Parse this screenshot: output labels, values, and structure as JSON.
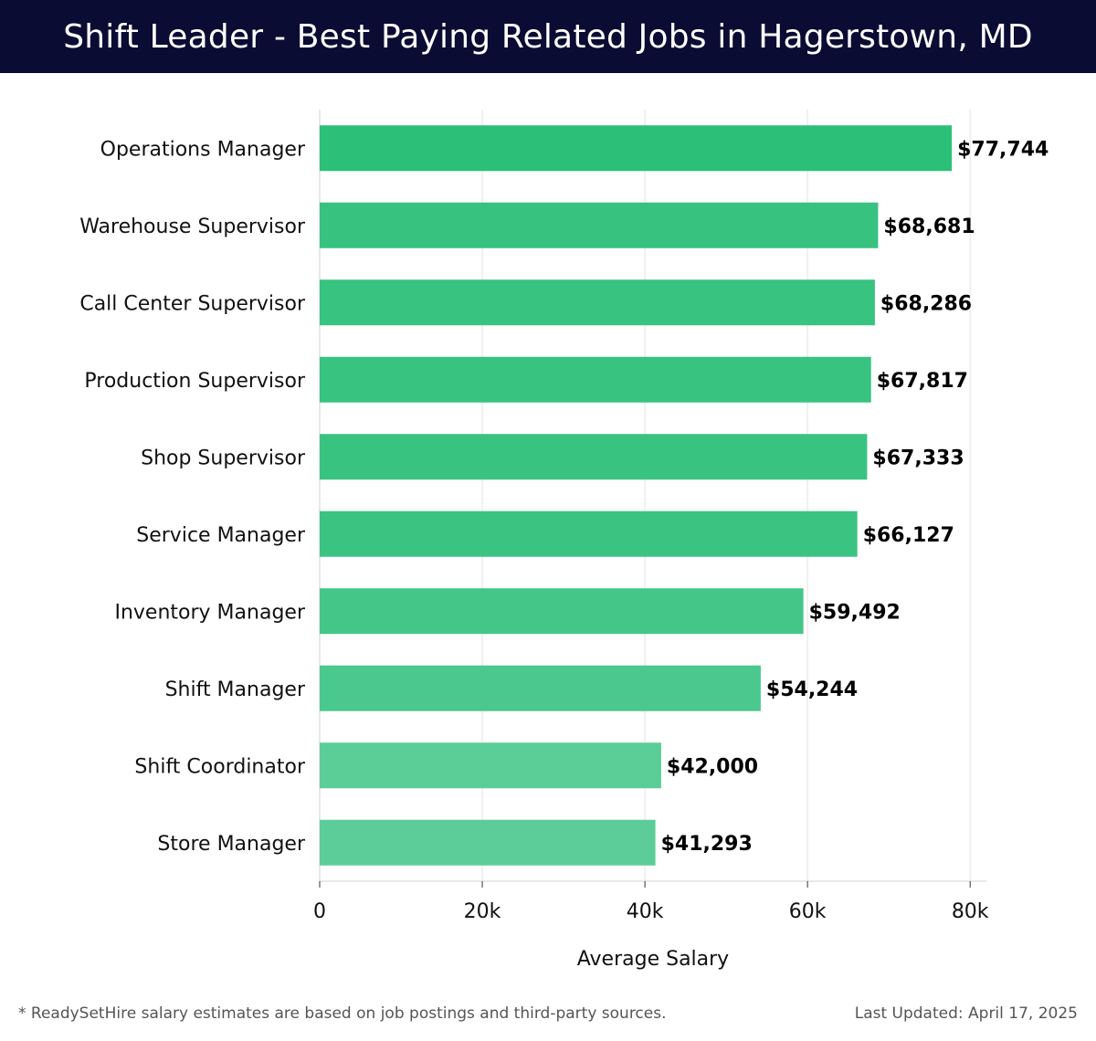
{
  "header": {
    "title": "Shift Leader - Best Paying Related Jobs in Hagerstown, MD"
  },
  "chart_data": {
    "type": "bar",
    "orientation": "horizontal",
    "categories": [
      "Operations Manager",
      "Warehouse Supervisor",
      "Call Center Supervisor",
      "Production Supervisor",
      "Shop Supervisor",
      "Service Manager",
      "Inventory Manager",
      "Shift Manager",
      "Shift Coordinator",
      "Store Manager"
    ],
    "values": [
      77744,
      68681,
      68286,
      67817,
      67333,
      66127,
      59492,
      54244,
      42000,
      41293
    ],
    "value_labels": [
      "$77,744",
      "$68,681",
      "$68,286",
      "$67,817",
      "$67,333",
      "$66,127",
      "$59,492",
      "$54,244",
      "$42,000",
      "$41,293"
    ],
    "xlabel": "Average Salary",
    "xlim": [
      0,
      82000
    ],
    "xticks": [
      0,
      20000,
      40000,
      60000,
      80000
    ],
    "xtick_labels": [
      "0",
      "20k",
      "40k",
      "60k",
      "80k"
    ],
    "grid": true,
    "bar_color_high": "#2bbf78",
    "bar_color_low": "#5ccd98"
  },
  "footer": {
    "note": "* ReadySetHire salary estimates are based on job postings and third-party sources.",
    "updated": "Last Updated: April 17, 2025"
  }
}
